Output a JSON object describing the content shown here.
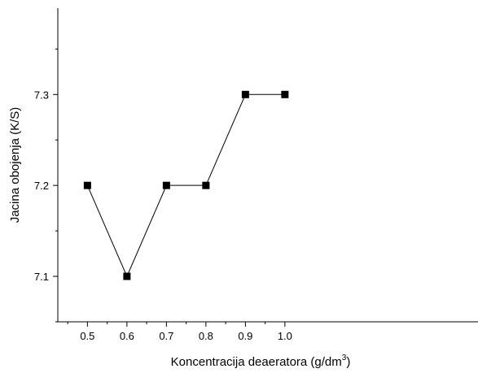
{
  "chart_data": {
    "type": "line",
    "xlabel": "Koncentracija deaeratora (g/dm",
    "xlabel_superscript": "3",
    "xlabel_suffix": ")",
    "ylabel": "Jacina obojenja (K/S)",
    "x_ticks": [
      "0.5",
      "0.6",
      "0.7",
      "0.8",
      "0.9",
      "1.0"
    ],
    "y_ticks": [
      "7.1",
      "7.2",
      "7.3"
    ],
    "xlim": [
      0.425,
      1.05
    ],
    "ylim": [
      7.05,
      7.395
    ],
    "grid": false,
    "marker": "square",
    "series": [
      {
        "x": [
          0.5,
          0.6,
          0.7,
          0.8,
          0.9,
          1.0
        ],
        "y": [
          7.2,
          7.1,
          7.2,
          7.2,
          7.3,
          7.3
        ]
      }
    ]
  }
}
